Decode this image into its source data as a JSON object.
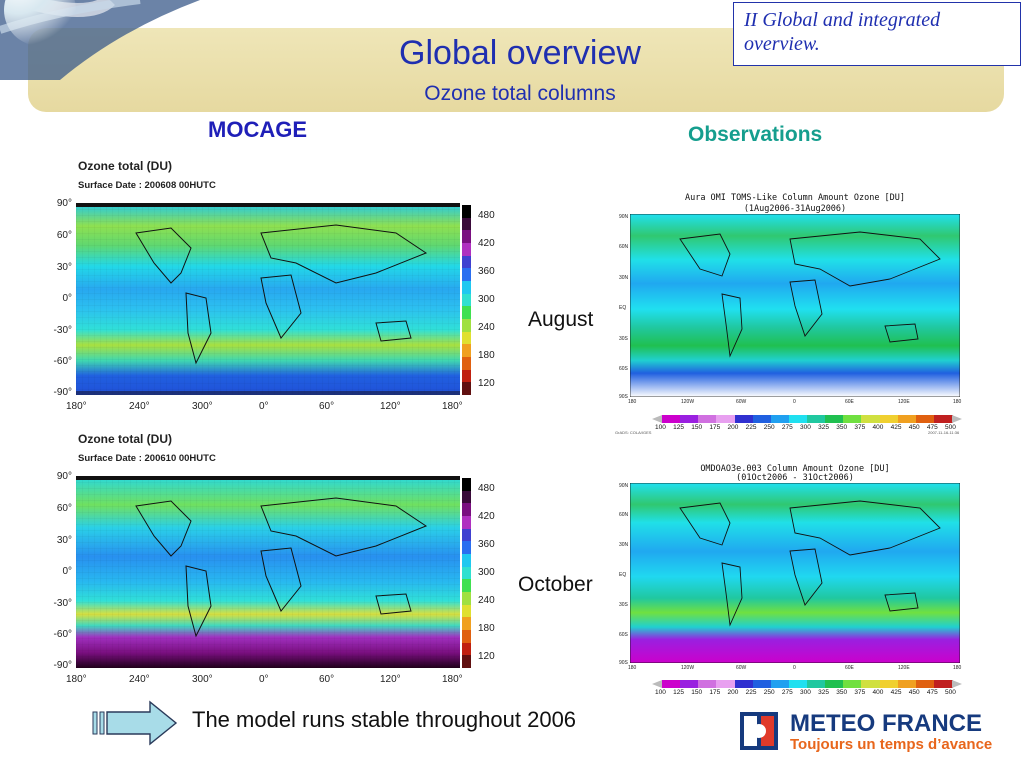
{
  "header": {
    "title": "Global overview",
    "subtitle": "Ozone total columns",
    "section_box": "II Global and integrated overview.",
    "banner_color": "#e9dca6",
    "title_color": "#1f2fb0"
  },
  "columns": {
    "model_label": "MOCAGE",
    "obs_label": "Observations"
  },
  "mocage_maps": [
    {
      "title": "Ozone total (DU)",
      "subtitle": "Surface    Date :  200608 00HUTC",
      "month_key": "aug"
    },
    {
      "title": "Ozone total (DU)",
      "subtitle": "Surface    Date :  200610 00HUTC",
      "month_key": "oct"
    }
  ],
  "mocage_axes": {
    "lat_ticks": [
      "90°",
      "60°",
      "30°",
      "0°",
      "-30°",
      "-60°",
      "-90°"
    ],
    "lon_ticks": [
      "180°",
      "240°",
      "300°",
      "0°",
      "60°",
      "120°",
      "180°"
    ],
    "colorbar_ticks": [
      "480",
      "420",
      "360",
      "300",
      "240",
      "180",
      "120"
    ]
  },
  "months": {
    "august": "August",
    "october": "October"
  },
  "obs_maps": [
    {
      "title_line1": "Aura OMI TOMS-Like Column Amount Ozone [DU]",
      "title_line2": "(1Aug2006-31Aug2006)",
      "footnote_left": "GrADS: COLA/IGES",
      "footnote_right": "2007-11-16-11:36"
    },
    {
      "title_line1": "OMDOAO3e.003 Column Amount Ozone [DU]",
      "title_line2": "(01Oct2006 - 31Oct2006)",
      "footnote_left": "",
      "footnote_right": ""
    }
  ],
  "obs_axes": {
    "lat_ticks": [
      "90N",
      "60N",
      "30N",
      "EQ",
      "30S",
      "60S",
      "90S"
    ],
    "lon_ticks": [
      "180",
      "120W",
      "60W",
      "0",
      "60E",
      "120E",
      "180"
    ],
    "colorbar_labels": [
      "100",
      "125",
      "150",
      "175",
      "200",
      "225",
      "250",
      "275",
      "300",
      "325",
      "350",
      "375",
      "400",
      "425",
      "450",
      "475",
      "500"
    ]
  },
  "footer": {
    "statement": "The model runs stable throughout 2006",
    "logo_name": "METEO FRANCE",
    "logo_tagline": "Toujours un temps d’avance",
    "icons": [
      "right-arrow-icon",
      "meteo-france-logo-icon"
    ]
  },
  "palette": {
    "mocage_colorbar": [
      "#000000",
      "#3a0a3a",
      "#7a0f80",
      "#b030c0",
      "#4040d0",
      "#2a6ef0",
      "#20c8f0",
      "#30e0d0",
      "#40e050",
      "#a0e040",
      "#e0e030",
      "#f0a020",
      "#e06010",
      "#c02010",
      "#601010"
    ],
    "obs_colorbar": [
      "#cc00cc",
      "#9a20e0",
      "#d070e0",
      "#e8a0f0",
      "#3030d0",
      "#2060e0",
      "#20a0f0",
      "#20e0f0",
      "#20c8a0",
      "#20c050",
      "#70e040",
      "#d0e040",
      "#f0d030",
      "#f0a020",
      "#e06010",
      "#c02020"
    ]
  }
}
